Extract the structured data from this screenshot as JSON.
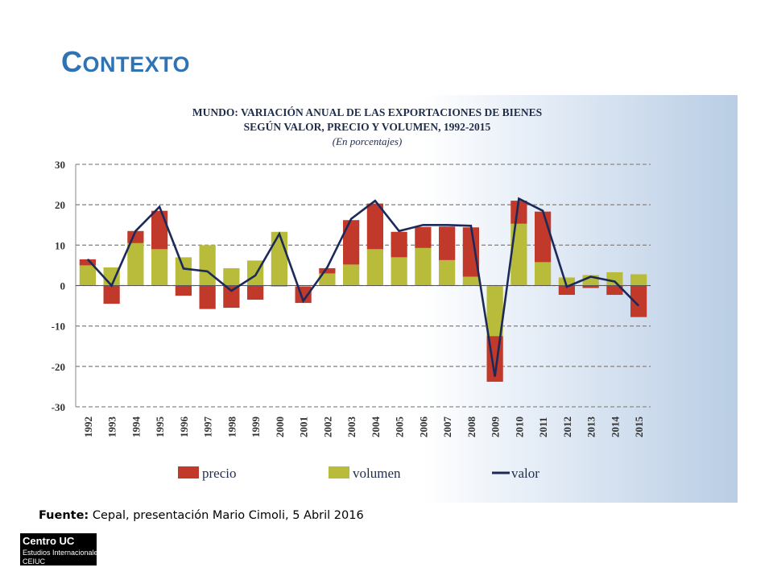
{
  "slide": {
    "title_cap": "C",
    "title_rest": "ONTEXTO",
    "source_label": "Fuente:",
    "source_text": " Cepal, presentación Mario Cimoli, 5 Abril 2016",
    "logo_line1": "Centro UC",
    "logo_line2": "Estudios Internacionales",
    "logo_line3": "CEIUC"
  },
  "colors": {
    "precio": "#c0392b",
    "volumen": "#b8bc3a",
    "valor": "#1b2a5a",
    "title": "#2e74b5"
  },
  "chart_data": {
    "type": "bar",
    "title_line1": "MUNDO: VARIACIÓN ANUAL DE LAS EXPORTACIONES DE BIENES",
    "title_line2": "SEGÚN VALOR, PRECIO Y VOLUMEN, 1992-2015",
    "subtitle": "(En porcentajes)",
    "ylim": [
      -30,
      30
    ],
    "yticks": [
      30,
      20,
      10,
      0,
      -10,
      -20,
      -30
    ],
    "grid": true,
    "legend_position": "bottom",
    "categories": [
      "1992",
      "1993",
      "1994",
      "1995",
      "1996",
      "1997",
      "1998",
      "1999",
      "2000",
      "2001",
      "2002",
      "2003",
      "2004",
      "2005",
      "2006",
      "2007",
      "2008",
      "2009",
      "2010",
      "2011",
      "2012",
      "2013",
      "2014",
      "2015"
    ],
    "series": [
      {
        "name": "volumen",
        "kind": "bar",
        "values": [
          5,
          4.5,
          10.5,
          9,
          7,
          10,
          4.3,
          6.2,
          13.3,
          -0.3,
          3,
          5.2,
          9,
          7,
          9.3,
          6.3,
          2.2,
          -12.5,
          15.3,
          5.8,
          2,
          2.6,
          3.3,
          2.8
        ]
      },
      {
        "name": "precio",
        "kind": "bar",
        "values": [
          1.5,
          -4.5,
          3,
          9.5,
          -2.5,
          -5.8,
          -5.5,
          -3.5,
          -0.2,
          -4,
          1.3,
          11,
          11.3,
          6.3,
          5.2,
          8.3,
          12.2,
          -11.3,
          5.7,
          12.5,
          -2.3,
          -0.6,
          -2.3,
          -7.8
        ]
      },
      {
        "name": "valor",
        "kind": "line",
        "values": [
          6.5,
          0,
          13.5,
          19.5,
          4.2,
          3.5,
          -1.3,
          2.5,
          12.8,
          -3.8,
          4.5,
          16.5,
          21,
          13.5,
          15,
          15,
          14.8,
          -22.5,
          21.5,
          18.5,
          -0.3,
          2.2,
          1,
          -5
        ]
      }
    ],
    "legend": [
      "precio",
      "volumen",
      "valor"
    ]
  }
}
